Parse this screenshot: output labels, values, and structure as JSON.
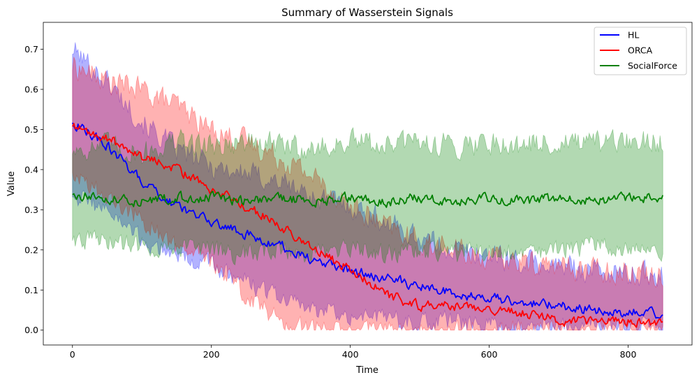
{
  "chart_data": {
    "type": "line",
    "title": "Summary of Wasserstein Signals",
    "xlabel": "Time",
    "ylabel": "Value",
    "xlim": [
      -42,
      892
    ],
    "ylim": [
      -0.037,
      0.767
    ],
    "xticks": [
      0,
      200,
      400,
      600,
      800
    ],
    "yticks": [
      0.0,
      0.1,
      0.2,
      0.3,
      0.4,
      0.5,
      0.6,
      0.7
    ],
    "grid": false,
    "legend": "top-right",
    "shaded_band": "mean ± spread, alpha 0.3",
    "series": [
      {
        "name": "HL",
        "color": "#0000ff",
        "band_color": "#0000ff",
        "x": [
          0,
          50,
          100,
          150,
          200,
          250,
          300,
          350,
          400,
          450,
          500,
          550,
          600,
          650,
          700,
          750,
          800,
          850
        ],
        "mean": [
          0.52,
          0.46,
          0.37,
          0.31,
          0.27,
          0.24,
          0.21,
          0.17,
          0.15,
          0.13,
          0.11,
          0.09,
          0.08,
          0.07,
          0.06,
          0.05,
          0.045,
          0.04
        ],
        "upper": [
          0.7,
          0.62,
          0.52,
          0.45,
          0.41,
          0.39,
          0.37,
          0.33,
          0.31,
          0.27,
          0.23,
          0.2,
          0.19,
          0.17,
          0.16,
          0.15,
          0.14,
          0.14
        ],
        "lower": [
          0.34,
          0.3,
          0.22,
          0.19,
          0.16,
          0.12,
          0.08,
          0.05,
          0.04,
          0.03,
          0.02,
          0.02,
          0.01,
          0.01,
          0.01,
          0.01,
          0.01,
          0.01
        ]
      },
      {
        "name": "ORCA",
        "color": "#ff0000",
        "band_color": "#ff0000",
        "x": [
          0,
          50,
          100,
          150,
          200,
          250,
          300,
          350,
          400,
          450,
          500,
          550,
          600,
          650,
          700,
          750,
          800,
          850
        ],
        "mean": [
          0.51,
          0.48,
          0.43,
          0.4,
          0.35,
          0.31,
          0.26,
          0.2,
          0.15,
          0.09,
          0.06,
          0.06,
          0.05,
          0.04,
          0.025,
          0.02,
          0.02,
          0.015
        ],
        "upper": [
          0.66,
          0.62,
          0.6,
          0.56,
          0.5,
          0.47,
          0.43,
          0.38,
          0.31,
          0.26,
          0.22,
          0.2,
          0.18,
          0.17,
          0.16,
          0.15,
          0.15,
          0.14
        ],
        "lower": [
          0.4,
          0.33,
          0.28,
          0.2,
          0.17,
          0.09,
          0.02,
          0.0,
          0.0,
          0.0,
          0.0,
          0.0,
          0.0,
          0.0,
          0.0,
          0.0,
          0.0,
          0.0
        ]
      },
      {
        "name": "SocialForce",
        "color": "#008000",
        "band_color": "#008000",
        "x": [
          0,
          50,
          100,
          150,
          200,
          250,
          300,
          350,
          400,
          450,
          500,
          550,
          600,
          650,
          700,
          750,
          800,
          850
        ],
        "mean": [
          0.34,
          0.33,
          0.32,
          0.33,
          0.33,
          0.32,
          0.33,
          0.32,
          0.33,
          0.32,
          0.33,
          0.32,
          0.33,
          0.32,
          0.33,
          0.32,
          0.33,
          0.33
        ],
        "upper": [
          0.45,
          0.46,
          0.44,
          0.47,
          0.46,
          0.47,
          0.46,
          0.45,
          0.47,
          0.46,
          0.47,
          0.46,
          0.47,
          0.46,
          0.47,
          0.46,
          0.47,
          0.47
        ],
        "lower": [
          0.23,
          0.22,
          0.21,
          0.21,
          0.2,
          0.19,
          0.2,
          0.19,
          0.2,
          0.19,
          0.2,
          0.19,
          0.2,
          0.19,
          0.2,
          0.21,
          0.21,
          0.2
        ]
      }
    ]
  }
}
